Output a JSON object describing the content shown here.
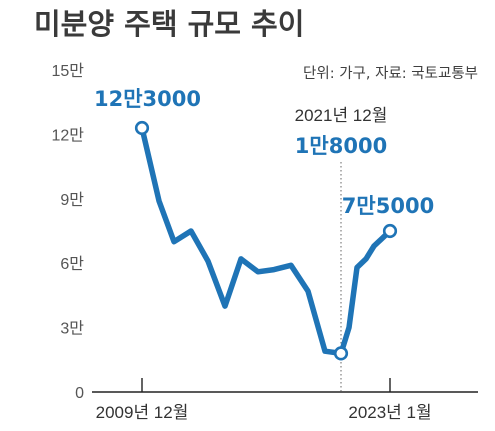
{
  "title": "미분양 주택 규모 추이",
  "unit_source": "단위: 가구, 자료: 국토교통부",
  "colors": {
    "line": "#1f74b6",
    "text": "#3a3a3a",
    "axis": "#222222",
    "dotted": "#888888"
  },
  "chart_data": {
    "type": "line",
    "title": "미분양 주택 규모 추이",
    "ylim": [
      0,
      150000
    ],
    "yticks": [
      {
        "value": 0,
        "label": "0"
      },
      {
        "value": 30000,
        "label": "3만"
      },
      {
        "value": 60000,
        "label": "6만"
      },
      {
        "value": 90000,
        "label": "9만"
      },
      {
        "value": 120000,
        "label": "12만"
      },
      {
        "value": 150000,
        "label": "15만"
      }
    ],
    "x": [
      "2009-12",
      "2010-12",
      "2011-12",
      "2012-12",
      "2013-12",
      "2014-12",
      "2015-12",
      "2016-12",
      "2017-12",
      "2018-12",
      "2019-12",
      "2020-12",
      "2021-12",
      "2022-03",
      "2022-06",
      "2022-09",
      "2022-12",
      "2023-01"
    ],
    "series": [
      {
        "values": [
          123000,
          89000,
          70000,
          75000,
          61000,
          40000,
          62000,
          56000,
          57000,
          59000,
          47000,
          19000,
          18000,
          30000,
          58000,
          62000,
          68000,
          75000
        ]
      }
    ],
    "xticks": [
      {
        "index": 0,
        "label": "2009년 12월"
      },
      {
        "index": 17,
        "label": "2023년 1월"
      }
    ],
    "annotations": [
      {
        "index": 0,
        "value_label": "12만3000"
      },
      {
        "index": 12,
        "date_label": "2021년 12월",
        "value_label": "1만8000"
      },
      {
        "index": 17,
        "value_label": "7만5000"
      }
    ],
    "grid": false
  }
}
